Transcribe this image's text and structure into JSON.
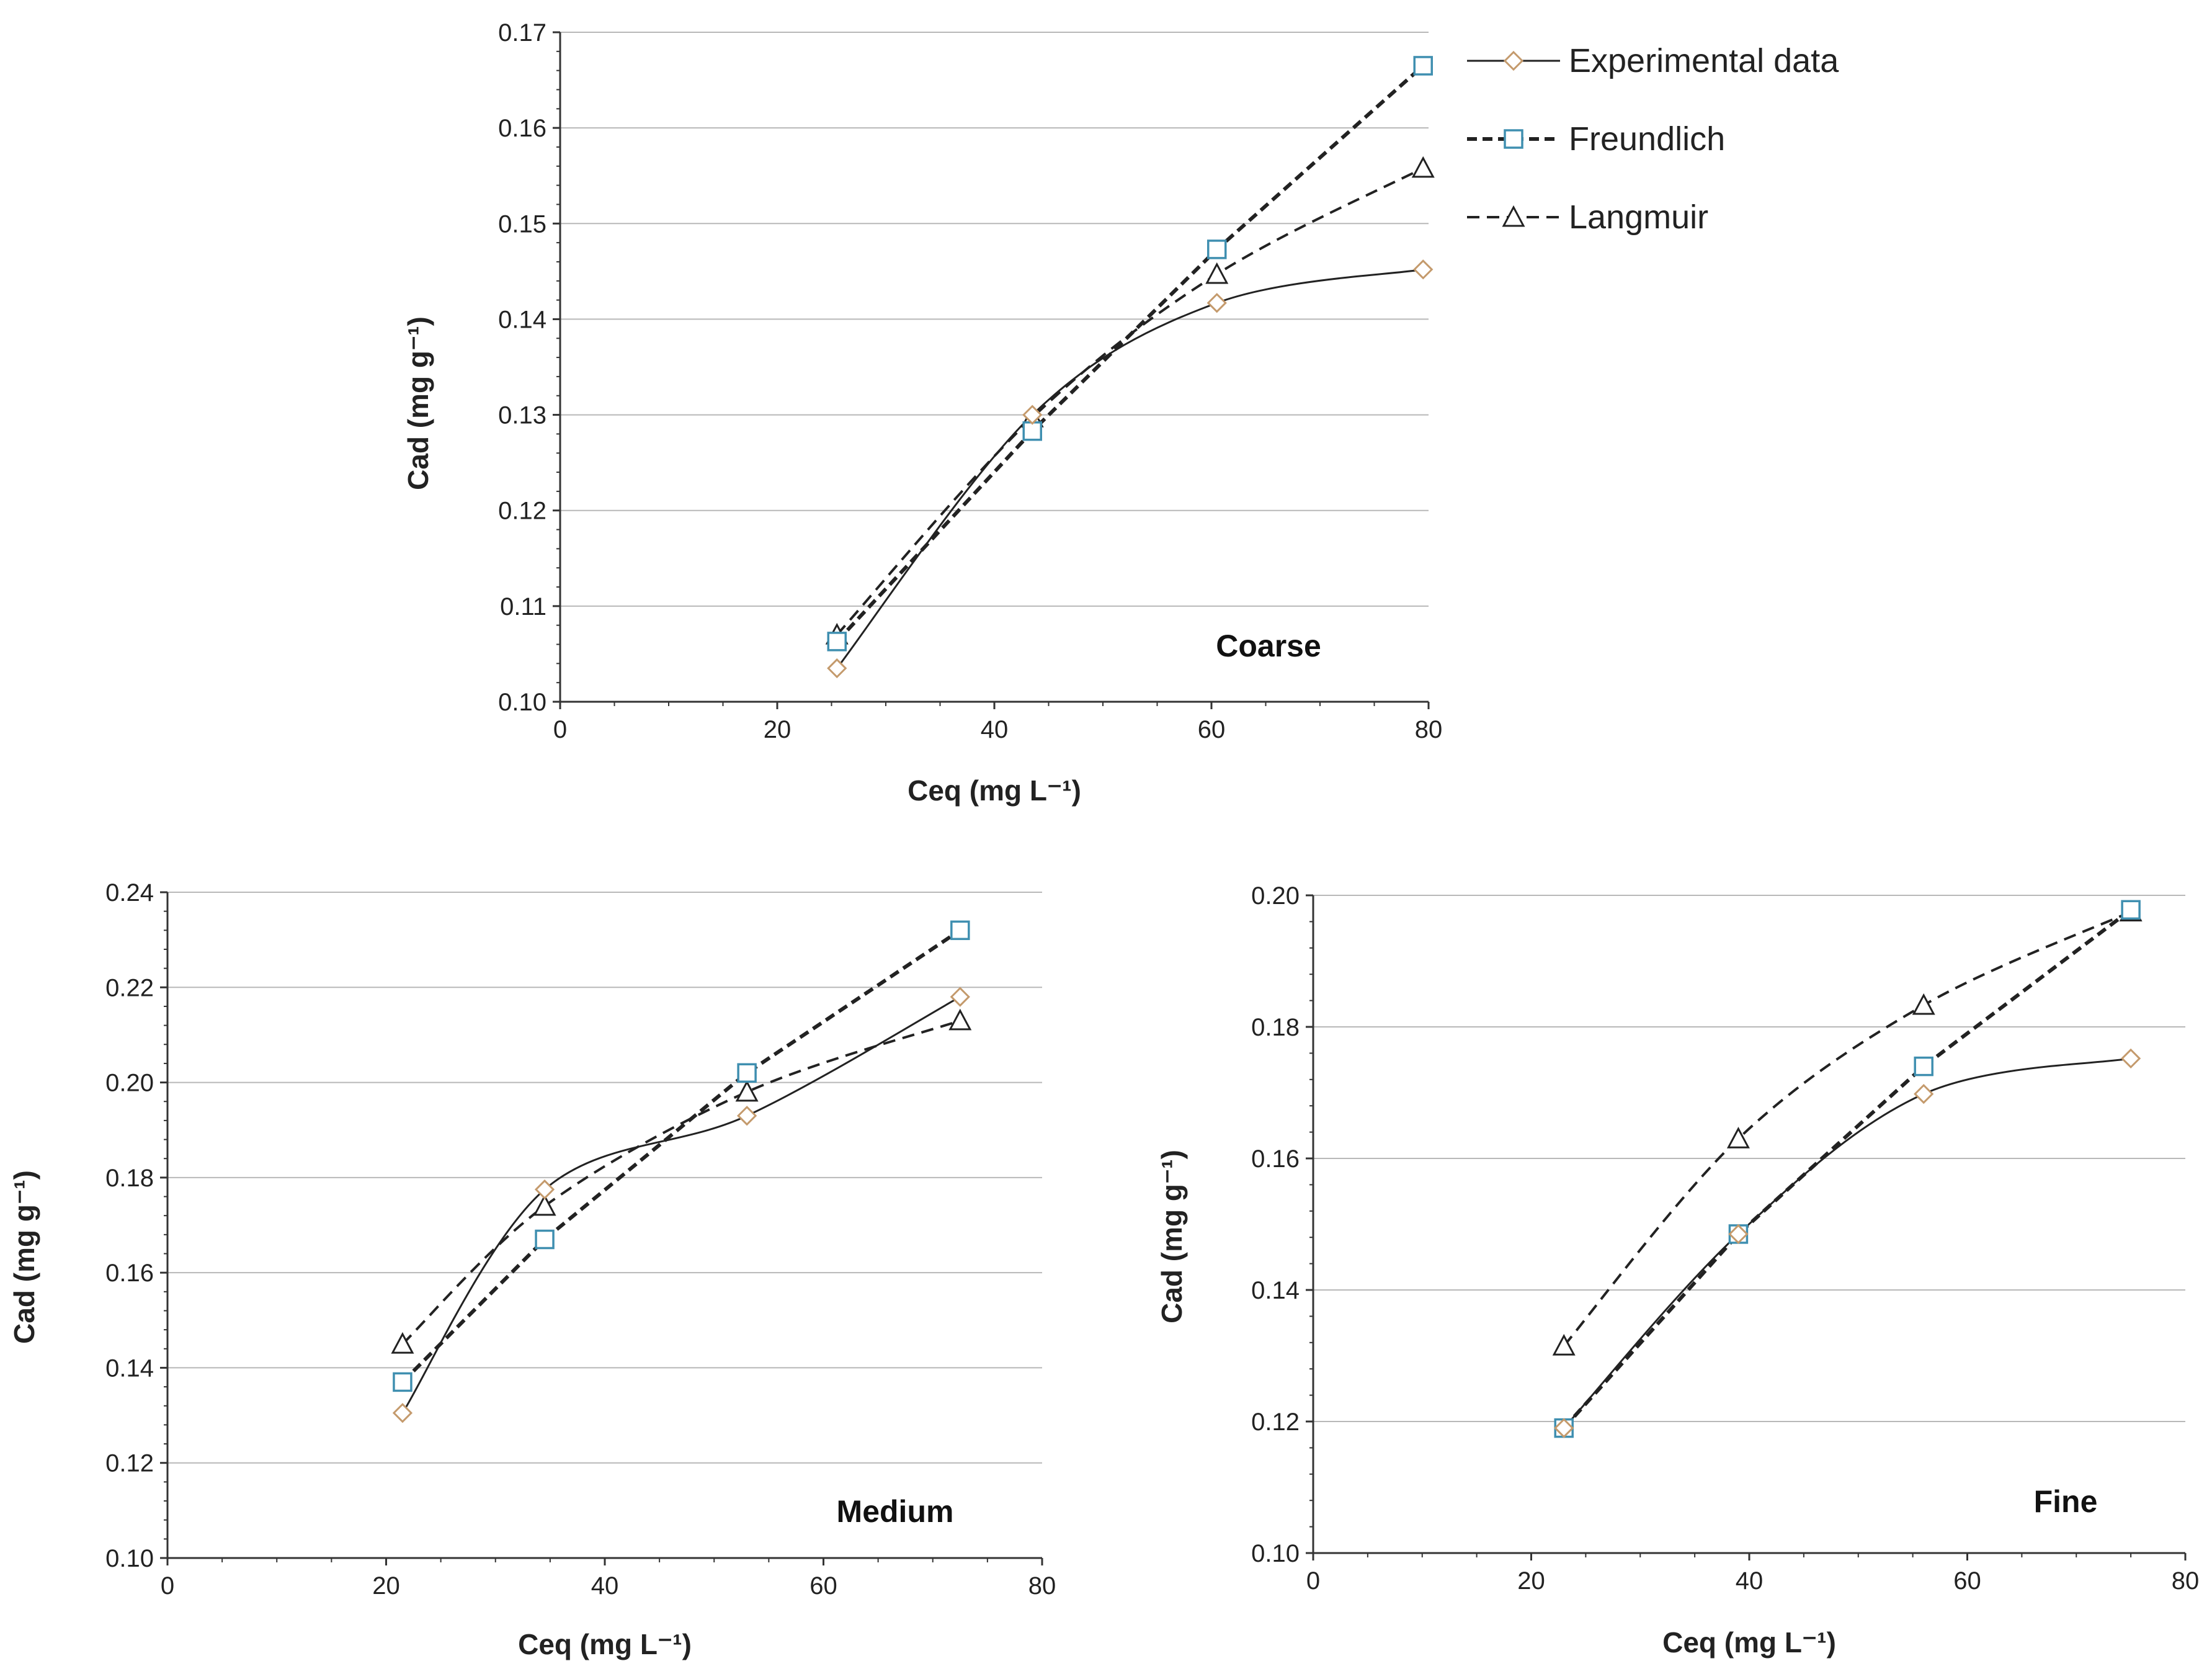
{
  "colors": {
    "experimental": "#c49a6c",
    "freundlich": "#3f8fb0",
    "langmuir": "#222222",
    "experimental_line": "#222222",
    "fit_line": "#222222"
  },
  "legend": {
    "items": [
      {
        "label": "Experimental data",
        "marker": "diamond",
        "line": "solid"
      },
      {
        "label": "Freundlich",
        "marker": "square",
        "line": "dashed-bold"
      },
      {
        "label": "Langmuir",
        "marker": "triangle",
        "line": "dashed"
      }
    ]
  },
  "chart_data": [
    {
      "type": "line",
      "panel": "Coarse",
      "xlabel": "Ceq (mg L⁻¹)",
      "ylabel": "Cad (mg g⁻¹)",
      "xlim": [
        0,
        80
      ],
      "ylim": [
        0.1,
        0.17
      ],
      "xticks": [
        0,
        20,
        40,
        60,
        80
      ],
      "yticks": [
        0.1,
        0.11,
        0.12,
        0.13,
        0.14,
        0.15,
        0.16,
        0.17
      ],
      "xtick_labels": [
        "0",
        "20",
        "40",
        "60",
        "80"
      ],
      "ytick_labels": [
        "0.10",
        "0.11",
        "0.12",
        "0.13",
        "0.14",
        "0.15",
        "0.16",
        "0.17"
      ],
      "grid": true,
      "series": [
        {
          "name": "Experimental data",
          "x": [
            25.5,
            43.5,
            60.5,
            79.5
          ],
          "y": [
            0.1035,
            0.13,
            0.1417,
            0.1452
          ]
        },
        {
          "name": "Freundlich",
          "x": [
            25.5,
            43.5,
            60.5,
            79.5
          ],
          "y": [
            0.1063,
            0.1283,
            0.1473,
            0.1665
          ]
        },
        {
          "name": "Langmuir",
          "x": [
            25.5,
            43.5,
            60.5,
            79.5
          ],
          "y": [
            0.107,
            0.1297,
            0.1447,
            0.1558
          ]
        }
      ]
    },
    {
      "type": "line",
      "panel": "Medium",
      "xlabel": "Ceq (mg L⁻¹)",
      "ylabel": "Cad (mg g⁻¹)",
      "xlim": [
        0,
        80
      ],
      "ylim": [
        0.1,
        0.24
      ],
      "xticks": [
        0,
        20,
        40,
        60,
        80
      ],
      "yticks": [
        0.1,
        0.12,
        0.14,
        0.16,
        0.18,
        0.2,
        0.22,
        0.24
      ],
      "xtick_labels": [
        "0",
        "20",
        "40",
        "60",
        "80"
      ],
      "ytick_labels": [
        "0.10",
        "0.12",
        "0.14",
        "0.16",
        "0.18",
        "0.20",
        "0.22",
        "0.24"
      ],
      "grid": true,
      "series": [
        {
          "name": "Experimental data",
          "x": [
            21.5,
            34.5,
            53.0,
            72.5
          ],
          "y": [
            0.1305,
            0.1775,
            0.193,
            0.218
          ]
        },
        {
          "name": "Freundlich",
          "x": [
            21.5,
            34.5,
            53.0,
            72.5
          ],
          "y": [
            0.137,
            0.167,
            0.202,
            0.232
          ]
        },
        {
          "name": "Langmuir",
          "x": [
            21.5,
            34.5,
            53.0,
            72.5
          ],
          "y": [
            0.145,
            0.174,
            0.198,
            0.213
          ]
        }
      ]
    },
    {
      "type": "line",
      "panel": "Fine",
      "xlabel": "Ceq (mg L⁻¹)",
      "ylabel": "Cad (mg g⁻¹)",
      "xlim": [
        0,
        80
      ],
      "ylim": [
        0.1,
        0.2
      ],
      "xticks": [
        0,
        20,
        40,
        60,
        80
      ],
      "yticks": [
        0.1,
        0.12,
        0.14,
        0.16,
        0.18,
        0.2
      ],
      "xtick_labels": [
        "0",
        "20",
        "40",
        "60",
        "80"
      ],
      "ytick_labels": [
        "0.10",
        "0.12",
        "0.14",
        "0.16",
        "0.18",
        "0.20"
      ],
      "grid": true,
      "series": [
        {
          "name": "Experimental data",
          "x": [
            23.0,
            39.0,
            56.0,
            75.0
          ],
          "y": [
            0.119,
            0.1485,
            0.1698,
            0.1752
          ]
        },
        {
          "name": "Freundlich",
          "x": [
            23.0,
            39.0,
            56.0,
            75.0
          ],
          "y": [
            0.119,
            0.1485,
            0.174,
            0.1978
          ]
        },
        {
          "name": "Langmuir",
          "x": [
            23.0,
            39.0,
            56.0,
            75.0
          ],
          "y": [
            0.1315,
            0.163,
            0.1833,
            0.1975
          ]
        }
      ]
    }
  ]
}
